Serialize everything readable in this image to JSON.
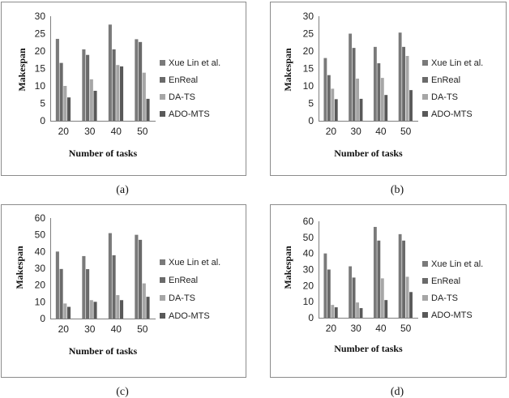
{
  "chart_data": [
    {
      "type": "bar",
      "caption": "(a)",
      "xlabel": "Number of tasks",
      "ylabel": "Makespan",
      "ylim": [
        0,
        30
      ],
      "yticks": [
        "0",
        "5",
        "10",
        "15",
        "20",
        "25",
        "30"
      ],
      "categories": [
        "20",
        "30",
        "40",
        "50"
      ],
      "legend_position": "right",
      "series": [
        {
          "name": "Xue Lin et al.",
          "color": "#7a7a7a",
          "values": [
            23.5,
            20.5,
            27.6,
            23.4
          ]
        },
        {
          "name": "EnReal",
          "color": "#6a6a6a",
          "values": [
            16.6,
            18.9,
            20.5,
            22.6
          ]
        },
        {
          "name": "DA-TS",
          "color": "#a6a6a6",
          "values": [
            10.0,
            11.9,
            16.0,
            13.8
          ]
        },
        {
          "name": "ADO-MTS",
          "color": "#595959",
          "values": [
            6.7,
            8.6,
            15.6,
            6.3
          ]
        }
      ]
    },
    {
      "type": "bar",
      "caption": "(b)",
      "xlabel": "Number of tasks",
      "ylabel": "Makespan",
      "ylim": [
        0,
        30
      ],
      "yticks": [
        "0",
        "5",
        "10",
        "15",
        "20",
        "25",
        "30"
      ],
      "categories": [
        "20",
        "30",
        "40",
        "50"
      ],
      "legend_position": "right",
      "series": [
        {
          "name": "Xue Lin et al.",
          "color": "#7a7a7a",
          "values": [
            18.0,
            25.0,
            21.2,
            25.3
          ]
        },
        {
          "name": "EnReal",
          "color": "#6a6a6a",
          "values": [
            13.1,
            20.9,
            16.5,
            21.2
          ]
        },
        {
          "name": "DA-TS",
          "color": "#a6a6a6",
          "values": [
            9.2,
            12.1,
            12.3,
            18.6
          ]
        },
        {
          "name": "ADO-MTS",
          "color": "#595959",
          "values": [
            6.2,
            6.3,
            7.4,
            8.8
          ]
        }
      ]
    },
    {
      "type": "bar",
      "caption": "(c)",
      "xlabel": "Number of tasks",
      "ylabel": "Makespan",
      "ylim": [
        0,
        60
      ],
      "yticks": [
        "0",
        "10",
        "20",
        "30",
        "40",
        "50",
        "60"
      ],
      "categories": [
        "20",
        "30",
        "40",
        "50"
      ],
      "legend_position": "right",
      "series": [
        {
          "name": "Xue Lin et al.",
          "color": "#7a7a7a",
          "values": [
            40.0,
            37.3,
            51.0,
            50.0
          ]
        },
        {
          "name": "EnReal",
          "color": "#6a6a6a",
          "values": [
            29.6,
            29.5,
            37.8,
            47.0
          ]
        },
        {
          "name": "DA-TS",
          "color": "#a6a6a6",
          "values": [
            9.0,
            11.0,
            14.0,
            21.0
          ]
        },
        {
          "name": "ADO-MTS",
          "color": "#595959",
          "values": [
            7.0,
            10.0,
            11.0,
            13.0
          ]
        }
      ]
    },
    {
      "type": "bar",
      "caption": "(d)",
      "xlabel": "Number of tasks",
      "ylabel": "Makespan",
      "ylim": [
        0,
        60
      ],
      "yticks": [
        "0",
        "10",
        "20",
        "30",
        "40",
        "50",
        "60"
      ],
      "categories": [
        "20",
        "30",
        "40",
        "50"
      ],
      "legend_position": "right",
      "series": [
        {
          "name": "Xue Lin et al.",
          "color": "#7a7a7a",
          "values": [
            40.0,
            32.0,
            56.5,
            52.0
          ]
        },
        {
          "name": "EnReal",
          "color": "#6a6a6a",
          "values": [
            30.0,
            25.0,
            48.0,
            48.0
          ]
        },
        {
          "name": "DA-TS",
          "color": "#a6a6a6",
          "values": [
            8.0,
            9.5,
            24.5,
            25.5
          ]
        },
        {
          "name": "ADO-MTS",
          "color": "#595959",
          "values": [
            6.5,
            6.0,
            11.0,
            16.0
          ]
        }
      ]
    }
  ]
}
